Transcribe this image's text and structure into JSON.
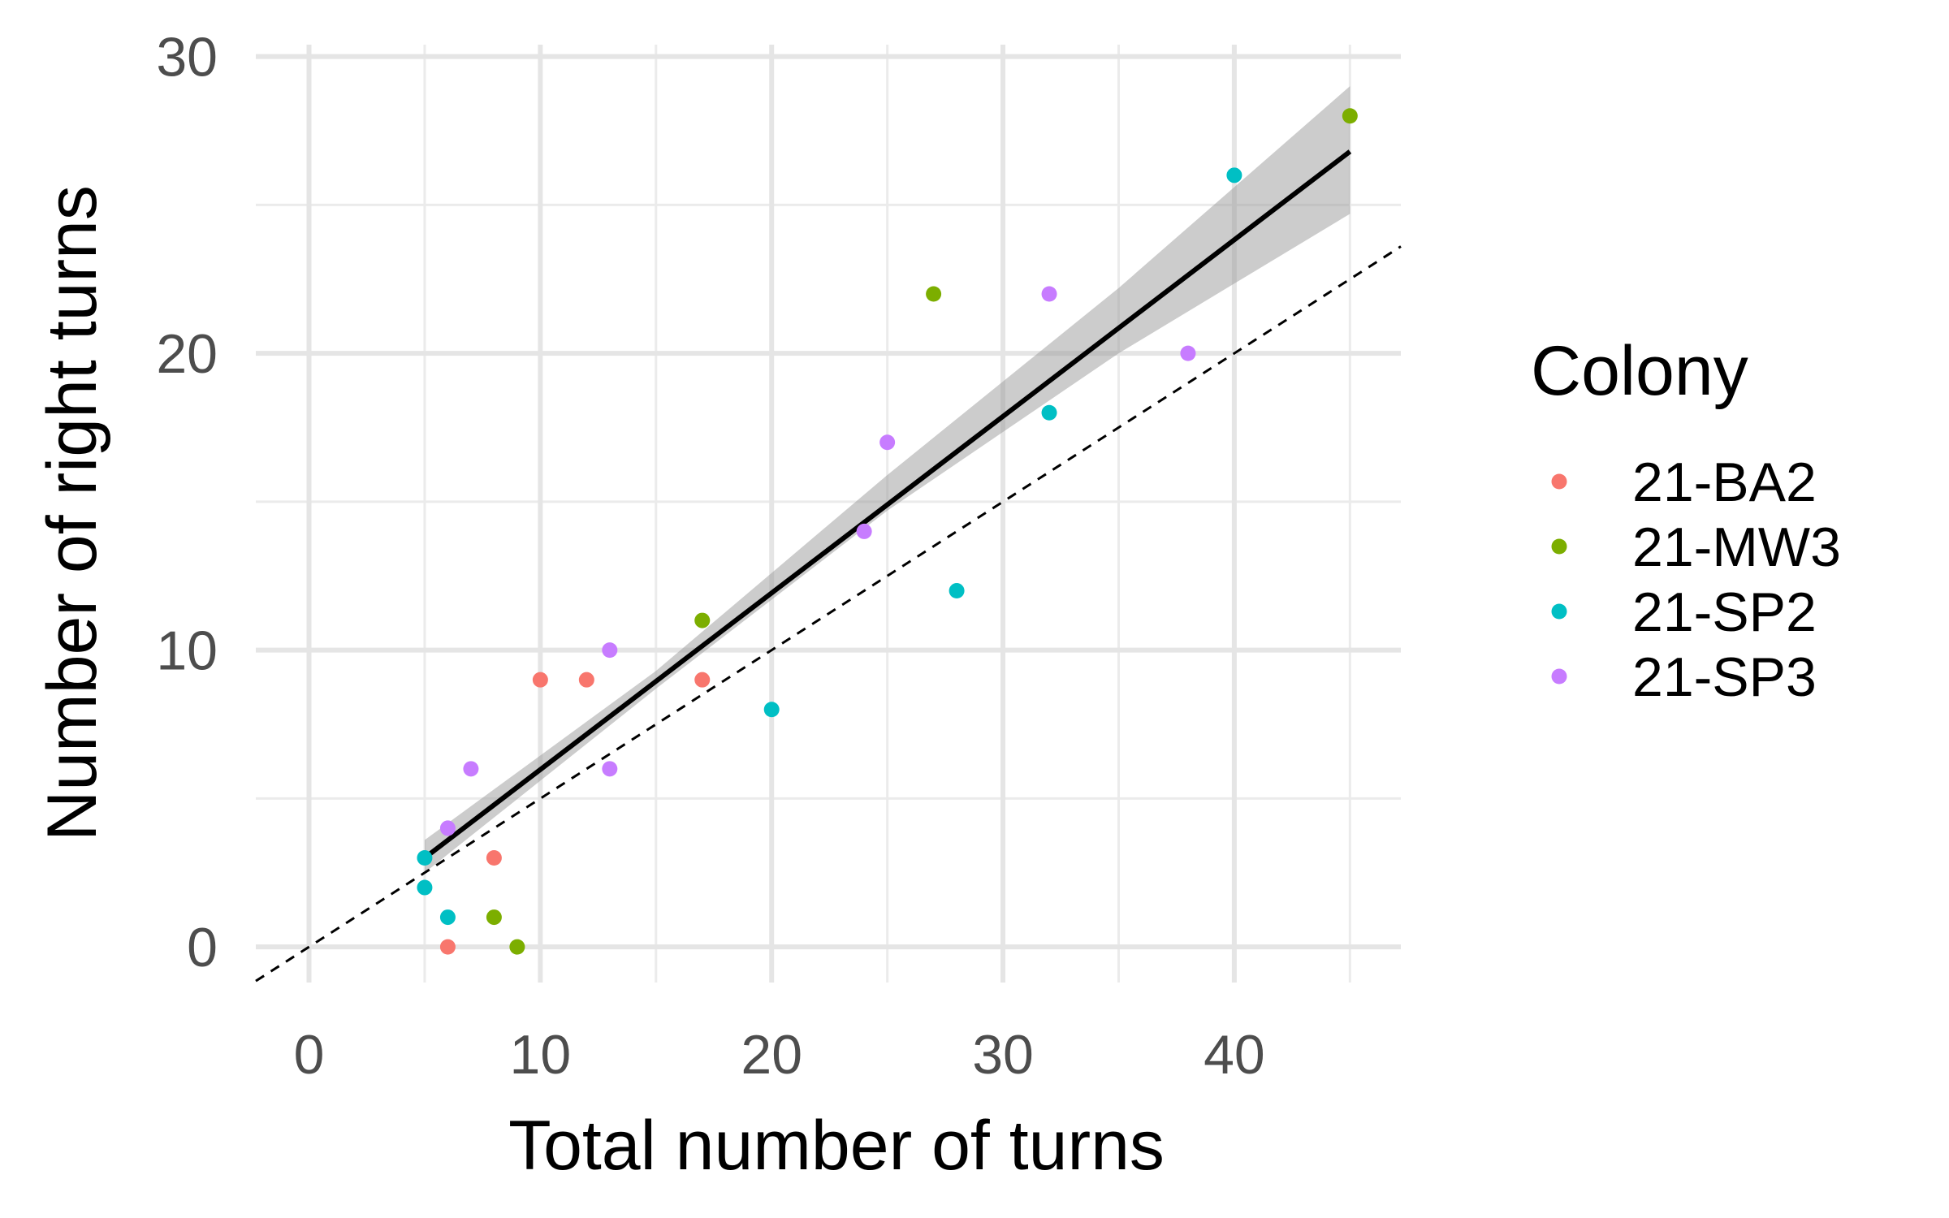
{
  "chart_data": {
    "type": "scatter",
    "title": "",
    "xlabel": "Total number of turns",
    "ylabel": "Number of right turns",
    "xlim": [
      -2.3,
      47.2
    ],
    "ylim": [
      -1.2,
      30.4
    ],
    "x_ticks": [
      0,
      10,
      20,
      30,
      40
    ],
    "y_ticks": [
      0,
      10,
      20,
      30
    ],
    "x_tick_labels": [
      "0",
      "10",
      "20",
      "30",
      "40"
    ],
    "y_tick_labels": [
      "0",
      "10",
      "20",
      "30"
    ],
    "grid": true,
    "legend": {
      "title": "Colony",
      "position": "right"
    },
    "series": [
      {
        "name": "21-BA2",
        "color": "#F8766D",
        "points": [
          [
            6,
            0
          ],
          [
            8,
            3
          ],
          [
            10,
            9
          ],
          [
            12,
            9
          ],
          [
            17,
            9
          ]
        ]
      },
      {
        "name": "21-MW3",
        "color": "#7CAE00",
        "points": [
          [
            8,
            1
          ],
          [
            9,
            0
          ],
          [
            17,
            11
          ],
          [
            27,
            22
          ],
          [
            45,
            28
          ]
        ]
      },
      {
        "name": "21-SP2",
        "color": "#00BFC4",
        "points": [
          [
            5,
            3
          ],
          [
            5,
            2
          ],
          [
            6,
            1
          ],
          [
            20,
            8
          ],
          [
            28,
            12
          ],
          [
            32,
            18
          ],
          [
            40,
            26
          ]
        ]
      },
      {
        "name": "21-SP3",
        "color": "#C77CFF",
        "points": [
          [
            6,
            4
          ],
          [
            7,
            6
          ],
          [
            13,
            10
          ],
          [
            13,
            6
          ],
          [
            24,
            14
          ],
          [
            25,
            17
          ],
          [
            32,
            22
          ],
          [
            38,
            20
          ]
        ]
      }
    ],
    "fit_line": {
      "color": "#000000",
      "from": [
        5,
        3.0
      ],
      "to": [
        45,
        26.8
      ],
      "confidence_band": {
        "color": "#999999",
        "x": [
          5,
          15,
          25,
          35,
          45
        ],
        "lower": [
          2.5,
          8.7,
          14.7,
          20.0,
          24.7
        ],
        "upper": [
          3.6,
          9.3,
          15.9,
          22.2,
          29.0
        ]
      }
    },
    "reference_line": {
      "style": "dashed",
      "color": "#000000",
      "slope": 0.5,
      "intercept": 0
    }
  }
}
